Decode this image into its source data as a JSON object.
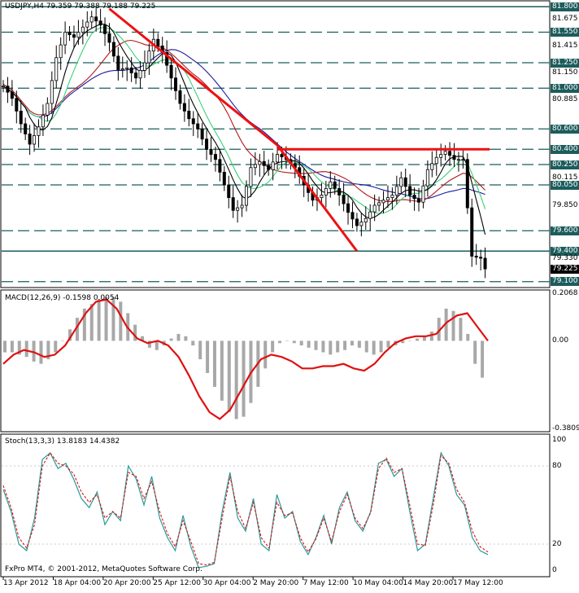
{
  "main_panel": {
    "header": "USDJPY,H4  79.359 79.388 79.188 79.225",
    "price_labels": [
      {
        "text": "81.800",
        "badge": true
      },
      {
        "text": "81.675",
        "badge": false
      },
      {
        "text": "81.550",
        "badge": true
      },
      {
        "text": "81.415",
        "badge": false
      },
      {
        "text": "81.250",
        "badge": true
      },
      {
        "text": "81.150",
        "badge": false
      },
      {
        "text": "81.000",
        "badge": true
      },
      {
        "text": "80.885",
        "badge": false
      },
      {
        "text": "80.600",
        "badge": true
      },
      {
        "text": "80.400",
        "badge": true
      },
      {
        "text": "80.250",
        "badge": true
      },
      {
        "text": "80.115",
        "badge": false
      },
      {
        "text": "80.050",
        "badge": true
      },
      {
        "text": "79.850",
        "badge": false
      },
      {
        "text": "79.600",
        "badge": true
      },
      {
        "text": "79.400",
        "badge": true
      },
      {
        "text": "79.330",
        "badge": false
      },
      {
        "text": "79.225",
        "badge": true,
        "dark": true
      },
      {
        "text": "79.100",
        "badge": true
      }
    ]
  },
  "macd_panel": {
    "header": "MACD(12,26,9) -0.1598 0.0054",
    "axis_labels": [
      "0.2068",
      "0.00",
      "-0.3809"
    ]
  },
  "stoch_panel": {
    "header": "Stoch(13,3,3) 13.8183 14.4382",
    "axis_labels": [
      "100",
      "80",
      "20",
      "0"
    ]
  },
  "footer_copyright": "FxPro MT4, © 2001-2012, MetaQuotes Software Corp.",
  "time_axis": [
    "13 Apr 2012",
    "18 Apr 04:00",
    "20 Apr 20:00",
    "25 Apr 12:00",
    "30 Apr 04:00",
    "2 May 20:00",
    "7 May 12:00",
    "10 May 04:00",
    "14 May 20:00",
    "17 May 12:00"
  ],
  "colors": {
    "grid_line": "#1d5c5c",
    "candle": "#000000",
    "trendline": "#ee1111",
    "ma_blue": "#1a1aa0",
    "ma_red": "#b01a1a",
    "ma_green": "#3bd07a",
    "ma_black": "#000000",
    "macd_hist": "#a8a8a8",
    "macd_signal": "#e01010",
    "stoch_main": "#2a9a9a",
    "stoch_signal": "#dd1111"
  },
  "chart_data": {
    "type": "candlestick",
    "symbol": "USDJPY",
    "timeframe": "H4",
    "last_quote": {
      "open": 79.359,
      "high": 79.388,
      "low": 79.188,
      "close": 79.225
    },
    "price_range": [
      79.05,
      81.85
    ],
    "horizontal_levels": [
      81.8,
      81.55,
      81.25,
      81.0,
      80.6,
      80.4,
      80.25,
      80.05,
      79.6,
      79.4,
      79.1
    ],
    "close_path": [
      [
        0,
        81.02
      ],
      [
        2,
        80.9
      ],
      [
        4,
        80.65
      ],
      [
        6,
        80.45
      ],
      [
        8,
        80.62
      ],
      [
        10,
        80.85
      ],
      [
        12,
        81.3
      ],
      [
        14,
        81.55
      ],
      [
        16,
        81.5
      ],
      [
        18,
        81.6
      ],
      [
        20,
        81.7
      ],
      [
        22,
        81.62
      ],
      [
        24,
        81.45
      ],
      [
        26,
        81.18
      ],
      [
        28,
        81.2
      ],
      [
        30,
        81.1
      ],
      [
        32,
        81.25
      ],
      [
        34,
        81.48
      ],
      [
        36,
        81.35
      ],
      [
        38,
        81.1
      ],
      [
        40,
        80.85
      ],
      [
        42,
        80.7
      ],
      [
        44,
        80.6
      ],
      [
        46,
        80.4
      ],
      [
        48,
        80.3
      ],
      [
        50,
        80.05
      ],
      [
        52,
        79.8
      ],
      [
        54,
        79.85
      ],
      [
        56,
        80.22
      ],
      [
        58,
        80.28
      ],
      [
        60,
        80.2
      ],
      [
        62,
        80.35
      ],
      [
        64,
        80.3
      ],
      [
        66,
        80.22
      ],
      [
        68,
        80.05
      ],
      [
        70,
        79.9
      ],
      [
        72,
        79.95
      ],
      [
        74,
        80.08
      ],
      [
        76,
        79.95
      ],
      [
        78,
        79.78
      ],
      [
        80,
        79.65
      ],
      [
        82,
        79.72
      ],
      [
        84,
        79.85
      ],
      [
        86,
        79.9
      ],
      [
        88,
        79.95
      ],
      [
        90,
        80.12
      ],
      [
        92,
        79.95
      ],
      [
        94,
        79.88
      ],
      [
        96,
        80.2
      ],
      [
        98,
        80.32
      ],
      [
        100,
        80.38
      ],
      [
        102,
        80.3
      ],
      [
        104,
        80.3
      ],
      [
        106,
        79.35
      ],
      [
        108,
        79.33
      ],
      [
        109,
        79.225
      ]
    ],
    "trendlines": [
      {
        "from": [
          24,
          81.78
        ],
        "to": [
          62,
          80.44
        ],
        "color": "red"
      },
      {
        "from": [
          62,
          80.44
        ],
        "to": [
          80,
          79.4
        ],
        "color": "red"
      },
      {
        "from": [
          62,
          80.4
        ],
        "to": [
          110,
          80.4
        ],
        "color": "red"
      }
    ],
    "macd": {
      "params": "12,26,9",
      "value": -0.1598,
      "signal": 0.0054,
      "ylim": [
        -0.3809,
        0.2068
      ],
      "histogram": [
        -0.05,
        -0.05,
        -0.06,
        -0.07,
        -0.09,
        -0.1,
        -0.08,
        -0.05,
        0.0,
        0.05,
        0.1,
        0.14,
        0.16,
        0.18,
        0.19,
        0.19,
        0.17,
        0.12,
        0.07,
        0.02,
        -0.03,
        -0.04,
        -0.02,
        0.01,
        0.03,
        0.02,
        -0.02,
        -0.08,
        -0.14,
        -0.2,
        -0.26,
        -0.31,
        -0.34,
        -0.33,
        -0.27,
        -0.2,
        -0.12,
        -0.05,
        -0.01,
        0.0,
        -0.01,
        -0.02,
        -0.03,
        -0.04,
        -0.05,
        -0.06,
        -0.05,
        -0.04,
        -0.02,
        -0.03,
        -0.05,
        -0.06,
        -0.05,
        -0.03,
        -0.02,
        -0.01,
        0.0,
        0.01,
        0.02,
        0.04,
        0.1,
        0.14,
        0.13,
        0.1,
        0.03,
        -0.1,
        -0.16
      ],
      "signal_line": [
        -0.1,
        -0.06,
        -0.04,
        -0.05,
        -0.07,
        -0.06,
        -0.02,
        0.05,
        0.12,
        0.17,
        0.18,
        0.14,
        0.06,
        0.01,
        -0.01,
        0.0,
        -0.02,
        -0.07,
        -0.15,
        -0.24,
        -0.31,
        -0.34,
        -0.3,
        -0.22,
        -0.14,
        -0.08,
        -0.06,
        -0.07,
        -0.09,
        -0.12,
        -0.12,
        -0.11,
        -0.11,
        -0.1,
        -0.12,
        -0.13,
        -0.1,
        -0.05,
        -0.01,
        0.01,
        0.02,
        0.02,
        0.03,
        0.08,
        0.11,
        0.12,
        0.06,
        0.0
      ]
    },
    "stochastic": {
      "params": "13,3,3",
      "main": 13.8183,
      "signal": 14.4382,
      "ylim": [
        0,
        100
      ],
      "levels": [
        20,
        80
      ],
      "main_line": [
        62,
        45,
        20,
        15,
        40,
        85,
        90,
        78,
        82,
        70,
        55,
        48,
        60,
        35,
        45,
        38,
        80,
        70,
        50,
        72,
        40,
        25,
        15,
        42,
        18,
        2,
        3,
        5,
        45,
        75,
        40,
        30,
        55,
        20,
        15,
        58,
        40,
        45,
        22,
        12,
        25,
        42,
        20,
        48,
        60,
        38,
        30,
        45,
        82,
        85,
        72,
        78,
        45,
        15,
        20,
        55,
        90,
        80,
        58,
        50,
        25,
        15,
        12
      ],
      "signal_line": [
        65,
        48,
        25,
        17,
        35,
        80,
        90,
        82,
        80,
        74,
        60,
        52,
        58,
        40,
        45,
        40,
        75,
        72,
        55,
        68,
        45,
        28,
        18,
        38,
        22,
        5,
        4,
        6,
        40,
        72,
        45,
        32,
        52,
        25,
        17,
        52,
        42,
        44,
        25,
        14,
        24,
        40,
        22,
        45,
        58,
        40,
        32,
        44,
        78,
        86,
        75,
        78,
        50,
        20,
        19,
        50,
        88,
        82,
        62,
        52,
        30,
        18,
        14
      ]
    }
  }
}
